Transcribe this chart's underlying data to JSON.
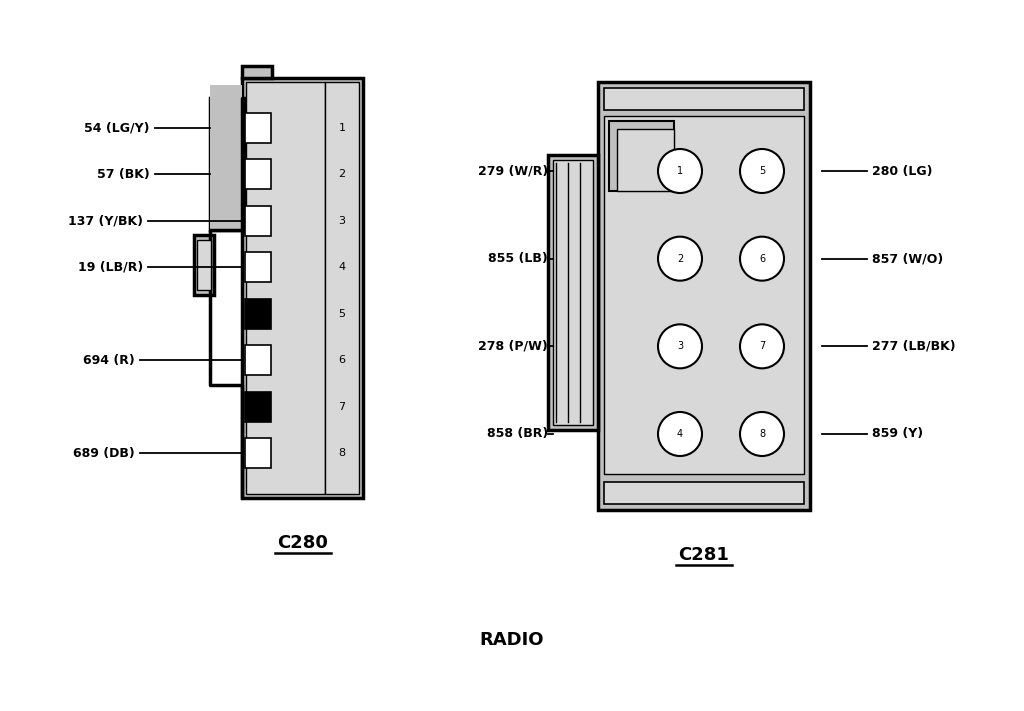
{
  "bg_color": "#ffffff",
  "title": "RADIO",
  "title_fontsize": 13,
  "title_fontweight": "bold",
  "c280_label": "C280",
  "c281_label": "C281",
  "fill_gray": "#c0c0c0",
  "fill_inner": "#d8d8d8",
  "edge_color": "#000000",
  "c280_pins": [
    {
      "num": "1",
      "label": "54 (LG/Y)",
      "type": "white"
    },
    {
      "num": "2",
      "label": "57 (BK)",
      "type": "white"
    },
    {
      "num": "3",
      "label": "137 (Y/BK)",
      "type": "white"
    },
    {
      "num": "4",
      "label": "19 (LB/R)",
      "type": "white"
    },
    {
      "num": "5",
      "label": "",
      "type": "black"
    },
    {
      "num": "6",
      "label": "694 (R)",
      "type": "white"
    },
    {
      "num": "7",
      "label": "",
      "type": "black"
    },
    {
      "num": "8",
      "label": "689 (DB)",
      "type": "white"
    }
  ],
  "c281_left_pins": [
    {
      "num": "1",
      "label": "279 (W/R)"
    },
    {
      "num": "2",
      "label": "855 (LB)"
    },
    {
      "num": "3",
      "label": "278 (P/W)"
    },
    {
      "num": "4",
      "label": "858 (BR)"
    }
  ],
  "c281_right_pins": [
    {
      "num": "5",
      "label": "280 (LG)"
    },
    {
      "num": "6",
      "label": "857 (W/O)"
    },
    {
      "num": "7",
      "label": "277 (LB/BK)"
    },
    {
      "num": "8",
      "label": "859 (Y)"
    }
  ]
}
